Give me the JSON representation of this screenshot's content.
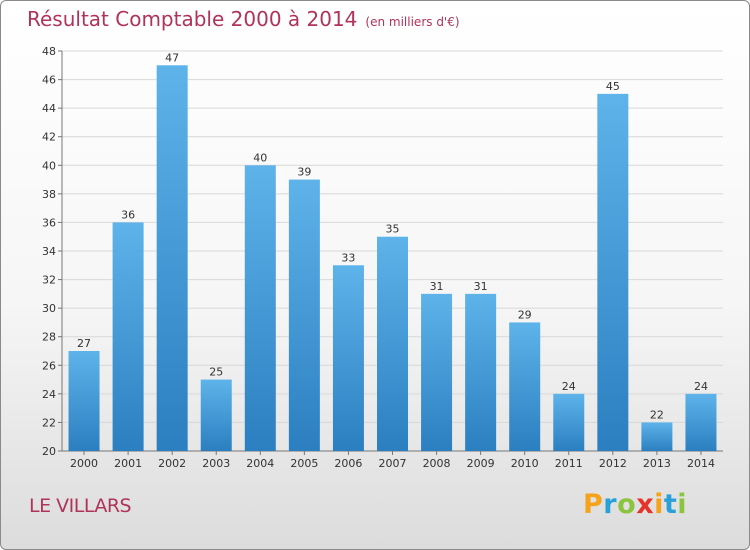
{
  "title": "Résultat Comptable 2000 à 2014",
  "subtitle": "(en milliers d'€)",
  "commune": "LE VILLARS",
  "brand": {
    "letters": [
      "P",
      "r",
      "o",
      "x",
      "i",
      "t",
      "i"
    ],
    "colors": [
      "#f7a21b",
      "#2aa0d8",
      "#8cc43f",
      "#e6332a",
      "#f7a21b",
      "#2aa0d8",
      "#8cc43f"
    ]
  },
  "chart_data": {
    "type": "bar",
    "categories": [
      "2000",
      "2001",
      "2002",
      "2003",
      "2004",
      "2005",
      "2006",
      "2007",
      "2008",
      "2009",
      "2010",
      "2011",
      "2012",
      "2013",
      "2014"
    ],
    "values": [
      27,
      36,
      47,
      25,
      40,
      39,
      33,
      35,
      31,
      31,
      29,
      24,
      45,
      22,
      24
    ],
    "ylim": [
      20,
      48
    ],
    "yticks": [
      20,
      22,
      24,
      26,
      28,
      30,
      32,
      34,
      36,
      38,
      40,
      42,
      44,
      46,
      48
    ],
    "grid": true,
    "bar_color_top": "#5eb3ea",
    "bar_color_bottom": "#2b7fc0"
  }
}
